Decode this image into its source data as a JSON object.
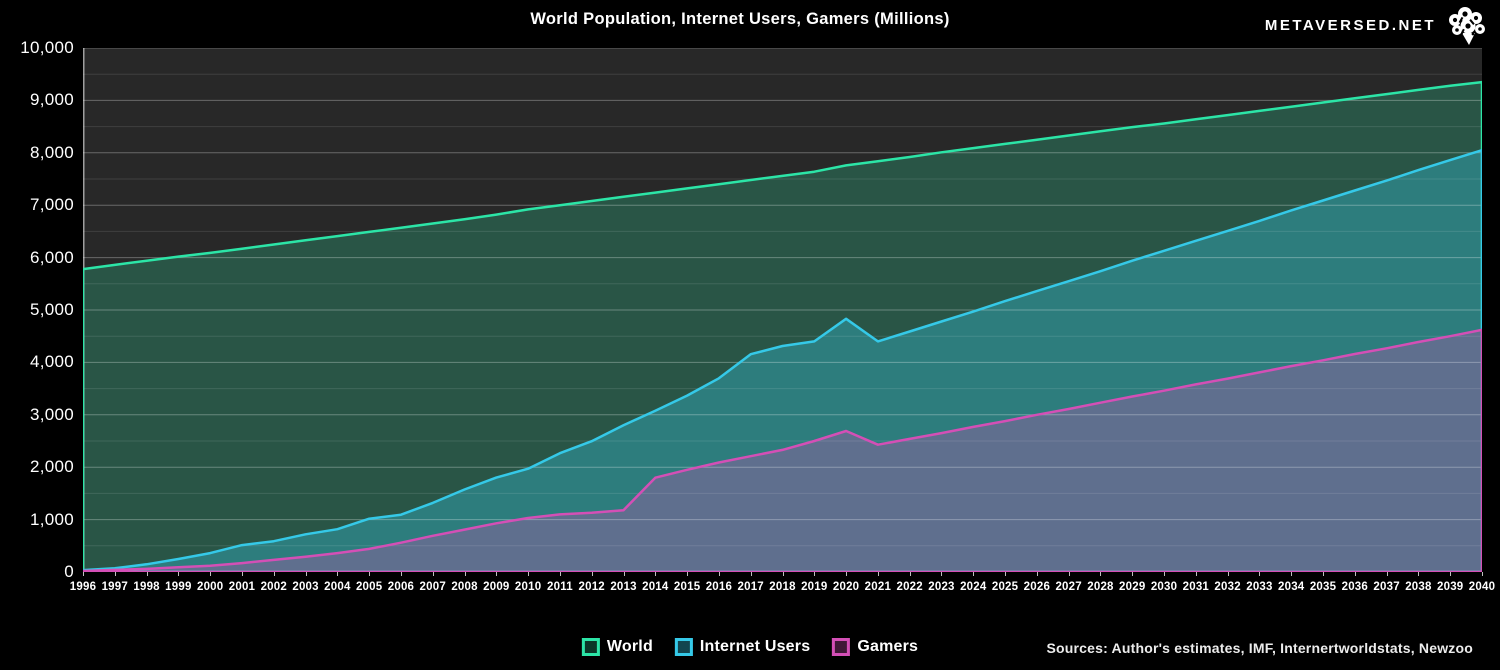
{
  "header": {
    "title": "World Population, Internet Users, Gamers (Millions)",
    "brand": "METAVERSED.NET"
  },
  "footer": {
    "sources": "Sources: Author's estimates, IMF, Internertworldstats, Newzoo"
  },
  "chart_data": {
    "type": "area",
    "title": "World Population, Internet Users, Gamers (Millions)",
    "unit": "Millions",
    "grid": true,
    "legend_position": "bottom-center",
    "plot_background": "#282828",
    "x": [
      1996,
      1997,
      1998,
      1999,
      2000,
      2001,
      2002,
      2003,
      2004,
      2005,
      2006,
      2007,
      2008,
      2009,
      2010,
      2011,
      2012,
      2013,
      2014,
      2015,
      2016,
      2017,
      2018,
      2019,
      2020,
      2021,
      2022,
      2023,
      2024,
      2025,
      2026,
      2027,
      2028,
      2029,
      2030,
      2031,
      2032,
      2033,
      2034,
      2035,
      2036,
      2037,
      2038,
      2039,
      2040
    ],
    "y_axis": {
      "min": 0,
      "max": 10000,
      "major_step": 1000,
      "minor_step": 500,
      "tick_labels": [
        "0",
        "1,000",
        "2,000",
        "3,000",
        "4,000",
        "5,000",
        "6,000",
        "7,000",
        "8,000",
        "9,000",
        "10,000"
      ]
    },
    "series": [
      {
        "name": "World",
        "color": "#2ce5a7",
        "fill": "rgba(44,229,167,0.24)",
        "values": [
          5780,
          5860,
          5940,
          6020,
          6090,
          6170,
          6250,
          6330,
          6410,
          6490,
          6570,
          6650,
          6730,
          6820,
          6920,
          7000,
          7080,
          7160,
          7240,
          7320,
          7400,
          7480,
          7560,
          7640,
          7760,
          7840,
          7920,
          8010,
          8090,
          8170,
          8250,
          8330,
          8410,
          8490,
          8560,
          8640,
          8720,
          8800,
          8880,
          8960,
          9040,
          9120,
          9200,
          9280,
          9350
        ]
      },
      {
        "name": "Internet Users",
        "color": "#35c9e8",
        "fill": "rgba(53,201,232,0.34)",
        "values": [
          36,
          70,
          147,
          248,
          361,
          513,
          587,
          719,
          817,
          1018,
          1093,
          1319,
          1574,
          1802,
          1971,
          2267,
          2497,
          2802,
          3079,
          3366,
          3696,
          4156,
          4313,
          4400,
          4833,
          4400,
          4590,
          4780,
          4970,
          5170,
          5360,
          5550,
          5740,
          5940,
          6130,
          6320,
          6510,
          6700,
          6900,
          7090,
          7280,
          7470,
          7670,
          7860,
          8050
        ]
      },
      {
        "name": "Gamers",
        "color": "#d44fb6",
        "fill": "rgba(212,79,182,0.30)",
        "values": [
          20,
          40,
          60,
          90,
          120,
          170,
          230,
          290,
          360,
          440,
          560,
          690,
          810,
          930,
          1030,
          1100,
          1130,
          1180,
          1800,
          1950,
          2090,
          2210,
          2330,
          2500,
          2690,
          2430,
          2540,
          2650,
          2770,
          2880,
          3000,
          3110,
          3230,
          3350,
          3460,
          3580,
          3690,
          3810,
          3930,
          4040,
          4160,
          4270,
          4390,
          4500,
          4620
        ]
      }
    ]
  }
}
